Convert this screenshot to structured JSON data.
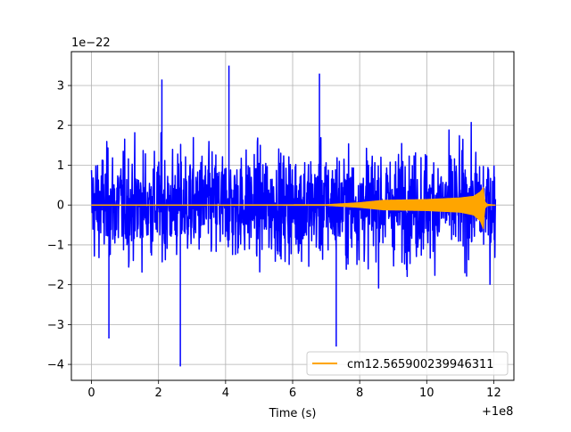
{
  "chart_data": {
    "type": "line",
    "title": "",
    "xlabel": "Time (s)",
    "ylabel": "",
    "x_offset_label": "+1e8",
    "y_scale_label": "1e−22",
    "xlim": [
      -0.6,
      12.6
    ],
    "ylim": [
      -4.4,
      3.85
    ],
    "x_ticks": [
      0,
      2,
      4,
      6,
      8,
      10,
      12
    ],
    "x_tick_labels": [
      "0",
      "2",
      "4",
      "6",
      "8",
      "10",
      "12"
    ],
    "y_ticks": [
      -4,
      -3,
      -2,
      -1,
      0,
      1,
      2,
      3
    ],
    "y_tick_labels": [
      "−4",
      "−3",
      "−2",
      "−1",
      "0",
      "1",
      "2",
      "3"
    ],
    "grid": true,
    "legend_position": "lower-right",
    "series": [
      {
        "name": "",
        "color": "#0000ff",
        "x_range": [
          0,
          12.05
        ],
        "typical_amplitude": 1.5,
        "peak_max": 3.5,
        "peak_min": -4.05
      },
      {
        "name": "cm12.565900239946311",
        "color": "#ffa500",
        "x_range": [
          0,
          12.05
        ],
        "envelope": {
          "x": [
            0,
            7.0,
            8.0,
            8.7,
            10.0,
            11.0,
            11.4,
            11.6,
            11.7,
            11.72,
            11.8,
            12.05
          ],
          "upper": [
            0,
            0.01,
            0.06,
            0.12,
            0.14,
            0.18,
            0.22,
            0.33,
            0.45,
            0.1,
            0.02,
            0
          ],
          "lower": [
            0,
            -0.01,
            -0.06,
            -0.12,
            -0.14,
            -0.18,
            -0.25,
            -0.4,
            -0.62,
            -0.1,
            -0.02,
            0
          ]
        }
      }
    ]
  }
}
